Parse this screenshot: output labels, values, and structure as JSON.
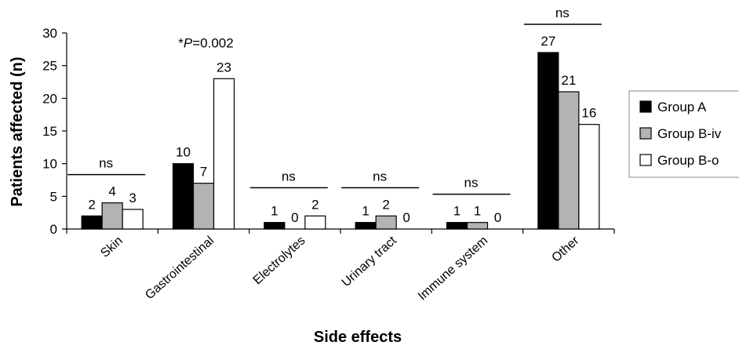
{
  "chart_data": {
    "type": "bar",
    "title": "",
    "xlabel": "Side effects",
    "ylabel": "Patients affected (n)",
    "ylim": [
      0,
      30
    ],
    "yticks": [
      0,
      5,
      10,
      15,
      20,
      25,
      30
    ],
    "grid": false,
    "legend_position": "right",
    "categories": [
      "Skin",
      "Gastrointestinal",
      "Electrolytes",
      "Urinary tract",
      "Immune system",
      "Other"
    ],
    "series": [
      {
        "name": "Group A",
        "color": "#000000",
        "values": [
          2,
          10,
          1,
          1,
          1,
          27
        ]
      },
      {
        "name": "Group B-iv",
        "color": "#b3b3b3",
        "values": [
          4,
          7,
          0,
          2,
          1,
          21
        ]
      },
      {
        "name": "Group B-o",
        "color": "#ffffff",
        "values": [
          3,
          23,
          2,
          0,
          0,
          16
        ]
      }
    ],
    "annotations": [
      {
        "category": "Skin",
        "text": "ns"
      },
      {
        "category": "Gastrointestinal",
        "text": "*P=0.002"
      },
      {
        "category": "Electrolytes",
        "text": "ns"
      },
      {
        "category": "Urinary tract",
        "text": "ns"
      },
      {
        "category": "Immune system",
        "text": "ns"
      },
      {
        "category": "Other",
        "text": "ns"
      }
    ]
  }
}
